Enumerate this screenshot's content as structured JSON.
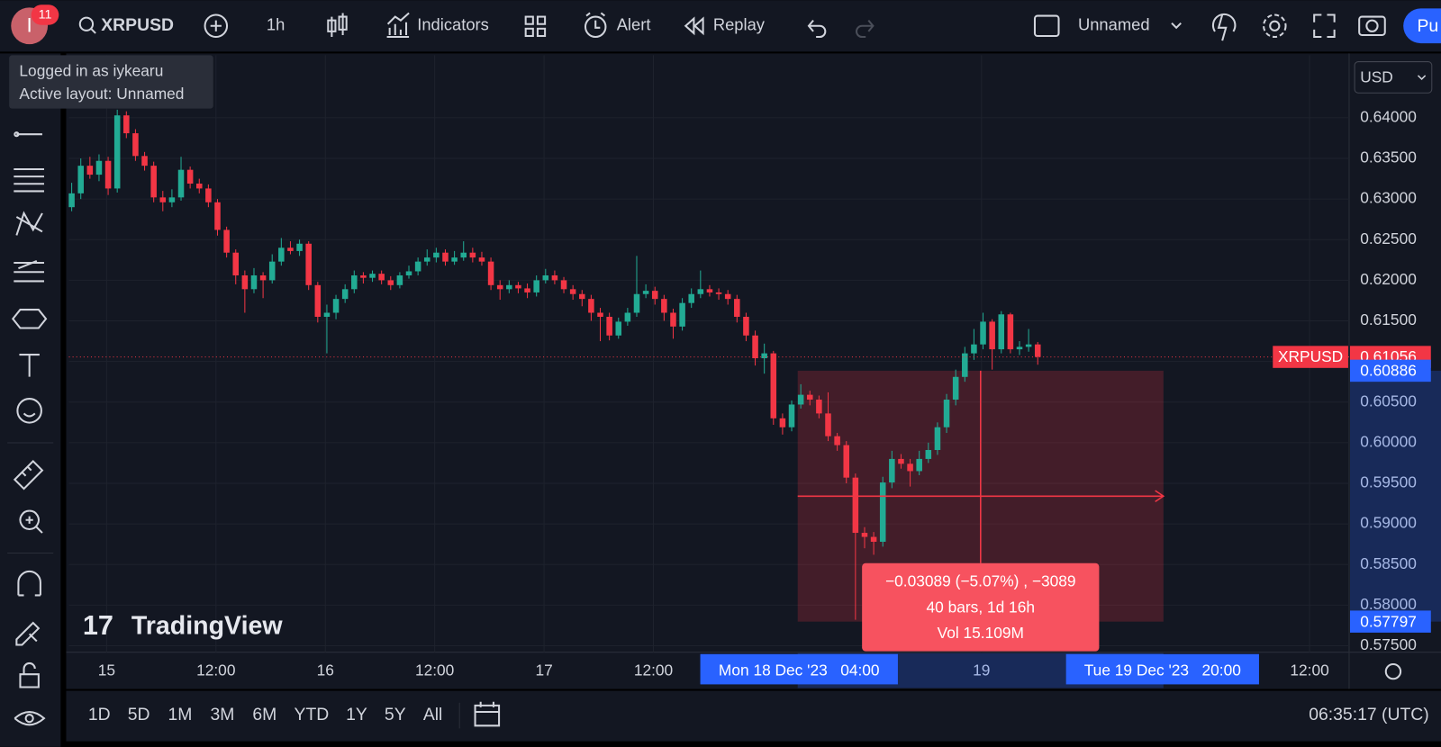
{
  "toolbar": {
    "avatar": "I",
    "badge": "11",
    "symbol": "XRPUSD",
    "interval": "1h",
    "indicators": "Indicators",
    "alert": "Alert",
    "replay": "Replay",
    "layout": "Unnamed",
    "publish": "Pu"
  },
  "user_tooltip": {
    "line1": "Logged in as iykearu",
    "line2": "Active layout: Unnamed"
  },
  "chart_data": {
    "type": "candlestick",
    "symbol_label": "XRPUSD",
    "currency": "USD",
    "watermark": "TradingView",
    "up_color": "#22ab94",
    "down_color": "#f23645",
    "grid": true,
    "ylim": [
      0.5742,
      0.6477
    ],
    "yticks": [
      {
        "value": 0.64,
        "label": "0.64000"
      },
      {
        "value": 0.635,
        "label": "0.63500"
      },
      {
        "value": 0.63,
        "label": "0.63000"
      },
      {
        "value": 0.625,
        "label": "0.62500"
      },
      {
        "value": 0.62,
        "label": "0.62000"
      },
      {
        "value": 0.615,
        "label": "0.61500"
      },
      {
        "value": 0.61,
        "label": "0.61000"
      },
      {
        "value": 0.605,
        "label": "0.60500"
      },
      {
        "value": 0.6,
        "label": "0.60000"
      },
      {
        "value": 0.595,
        "label": "0.59500"
      },
      {
        "value": 0.59,
        "label": "0.59000"
      },
      {
        "value": 0.585,
        "label": "0.58500"
      },
      {
        "value": 0.58,
        "label": "0.58000"
      },
      {
        "value": 0.575,
        "label": "0.57500"
      }
    ],
    "xticks": [
      "15",
      "12:00",
      "16",
      "12:00",
      "17",
      "12:00",
      "19",
      "12:00"
    ],
    "last_price": 0.61056,
    "measure": {
      "high": 0.60886,
      "low": 0.57797,
      "change": "−0.03089 (−5.07%) , −3089",
      "bars": "40 bars, 1d 16h",
      "volume": "Vol 15.109M",
      "start_label": "Mon 18 Dec '23   04:00",
      "end_label": "Tue 19 Dec '23   20:00"
    },
    "candles": [
      [
        0.629,
        0.632,
        0.6285,
        0.6307
      ],
      [
        0.6307,
        0.635,
        0.63,
        0.6341
      ],
      [
        0.6341,
        0.6352,
        0.6325,
        0.633
      ],
      [
        0.633,
        0.6355,
        0.6322,
        0.6347
      ],
      [
        0.6347,
        0.6352,
        0.6305,
        0.6313
      ],
      [
        0.6313,
        0.641,
        0.6308,
        0.6403
      ],
      [
        0.6403,
        0.6408,
        0.6375,
        0.6381
      ],
      [
        0.6381,
        0.6386,
        0.6347,
        0.6353
      ],
      [
        0.6353,
        0.6358,
        0.6335,
        0.6341
      ],
      [
        0.6341,
        0.6346,
        0.6296,
        0.6302
      ],
      [
        0.6302,
        0.631,
        0.6285,
        0.6296
      ],
      [
        0.6296,
        0.6312,
        0.629,
        0.6302
      ],
      [
        0.6302,
        0.6352,
        0.6298,
        0.6336
      ],
      [
        0.6336,
        0.634,
        0.6313,
        0.6319
      ],
      [
        0.6319,
        0.6325,
        0.6307,
        0.6313
      ],
      [
        0.6313,
        0.6318,
        0.629,
        0.6296
      ],
      [
        0.6296,
        0.63,
        0.6255,
        0.6262
      ],
      [
        0.6262,
        0.6266,
        0.6228,
        0.6234
      ],
      [
        0.6234,
        0.6238,
        0.6195,
        0.6206
      ],
      [
        0.6206,
        0.6212,
        0.616,
        0.6189
      ],
      [
        0.6189,
        0.6215,
        0.6184,
        0.6206
      ],
      [
        0.6206,
        0.621,
        0.6178,
        0.62
      ],
      [
        0.62,
        0.6232,
        0.6196,
        0.6223
      ],
      [
        0.6223,
        0.6252,
        0.6218,
        0.624
      ],
      [
        0.624,
        0.6248,
        0.6232,
        0.6236
      ],
      [
        0.6236,
        0.625,
        0.623,
        0.6245
      ],
      [
        0.6245,
        0.6248,
        0.6188,
        0.6194
      ],
      [
        0.6194,
        0.6198,
        0.6148,
        0.6155
      ],
      [
        0.6155,
        0.617,
        0.611,
        0.616
      ],
      [
        0.616,
        0.6182,
        0.6152,
        0.6177
      ],
      [
        0.6177,
        0.6195,
        0.6172,
        0.6189
      ],
      [
        0.6189,
        0.6212,
        0.6184,
        0.6206
      ],
      [
        0.6206,
        0.621,
        0.6196,
        0.6203
      ],
      [
        0.6203,
        0.6212,
        0.6198,
        0.6208
      ],
      [
        0.6208,
        0.6212,
        0.6195,
        0.62
      ],
      [
        0.62,
        0.6205,
        0.6188,
        0.6194
      ],
      [
        0.6194,
        0.621,
        0.619,
        0.6206
      ],
      [
        0.6206,
        0.6218,
        0.6202,
        0.6211
      ],
      [
        0.6211,
        0.6228,
        0.6206,
        0.6223
      ],
      [
        0.6223,
        0.6238,
        0.6218,
        0.6228
      ],
      [
        0.6228,
        0.624,
        0.6222,
        0.6234
      ],
      [
        0.6234,
        0.6238,
        0.6218,
        0.6223
      ],
      [
        0.6223,
        0.6236,
        0.6219,
        0.6228
      ],
      [
        0.6228,
        0.6248,
        0.6224,
        0.6234
      ],
      [
        0.6234,
        0.624,
        0.6222,
        0.6228
      ],
      [
        0.6228,
        0.6235,
        0.6218,
        0.6223
      ],
      [
        0.6223,
        0.6228,
        0.6188,
        0.6194
      ],
      [
        0.6194,
        0.62,
        0.6176,
        0.6189
      ],
      [
        0.6189,
        0.62,
        0.6184,
        0.6194
      ],
      [
        0.6194,
        0.6198,
        0.6184,
        0.619
      ],
      [
        0.619,
        0.6196,
        0.6178,
        0.6185
      ],
      [
        0.6185,
        0.6206,
        0.618,
        0.62
      ],
      [
        0.62,
        0.6214,
        0.6196,
        0.6206
      ],
      [
        0.6206,
        0.6212,
        0.6195,
        0.62
      ],
      [
        0.62,
        0.6204,
        0.6184,
        0.6189
      ],
      [
        0.6189,
        0.6194,
        0.6176,
        0.6183
      ],
      [
        0.6183,
        0.6188,
        0.6168,
        0.6177
      ],
      [
        0.6177,
        0.6182,
        0.615,
        0.616
      ],
      [
        0.616,
        0.6166,
        0.6125,
        0.6155
      ],
      [
        0.6155,
        0.616,
        0.6126,
        0.6132
      ],
      [
        0.6132,
        0.6154,
        0.6128,
        0.6149
      ],
      [
        0.6149,
        0.6166,
        0.6144,
        0.616
      ],
      [
        0.616,
        0.623,
        0.6155,
        0.6183
      ],
      [
        0.6183,
        0.6195,
        0.6178,
        0.6187
      ],
      [
        0.6187,
        0.6192,
        0.617,
        0.6177
      ],
      [
        0.6177,
        0.6182,
        0.615,
        0.616
      ],
      [
        0.616,
        0.6165,
        0.6128,
        0.6143
      ],
      [
        0.6143,
        0.6178,
        0.6138,
        0.6172
      ],
      [
        0.6172,
        0.619,
        0.6166,
        0.6183
      ],
      [
        0.6183,
        0.6212,
        0.6178,
        0.6189
      ],
      [
        0.6189,
        0.6194,
        0.618,
        0.6185
      ],
      [
        0.6185,
        0.619,
        0.6176,
        0.6183
      ],
      [
        0.6183,
        0.6188,
        0.617,
        0.6177
      ],
      [
        0.6177,
        0.6182,
        0.6148,
        0.6155
      ],
      [
        0.6155,
        0.616,
        0.6125,
        0.6132
      ],
      [
        0.6132,
        0.6138,
        0.6095,
        0.6104
      ],
      [
        0.6104,
        0.6122,
        0.6085,
        0.611
      ],
      [
        0.611,
        0.6113,
        0.6022,
        0.603
      ],
      [
        0.603,
        0.6036,
        0.601,
        0.6019
      ],
      [
        0.6019,
        0.6052,
        0.6014,
        0.6047
      ],
      [
        0.6047,
        0.6072,
        0.6042,
        0.6059
      ],
      [
        0.6059,
        0.6064,
        0.6046,
        0.6053
      ],
      [
        0.6053,
        0.6058,
        0.603,
        0.6036
      ],
      [
        0.6036,
        0.6062,
        0.6002,
        0.6008
      ],
      [
        0.6008,
        0.6012,
        0.599,
        0.5997
      ],
      [
        0.5997,
        0.6002,
        0.595,
        0.5957
      ],
      [
        0.5957,
        0.5962,
        0.5782,
        0.5889
      ],
      [
        0.5889,
        0.5896,
        0.587,
        0.5884
      ],
      [
        0.5884,
        0.589,
        0.5862,
        0.5878
      ],
      [
        0.5878,
        0.5958,
        0.5872,
        0.5951
      ],
      [
        0.5951,
        0.599,
        0.5944,
        0.598
      ],
      [
        0.598,
        0.5986,
        0.5968,
        0.5974
      ],
      [
        0.5974,
        0.598,
        0.5946,
        0.5965
      ],
      [
        0.5965,
        0.599,
        0.596,
        0.598
      ],
      [
        0.598,
        0.6,
        0.5975,
        0.5991
      ],
      [
        0.5991,
        0.6025,
        0.5985,
        0.6019
      ],
      [
        0.6019,
        0.606,
        0.6012,
        0.6053
      ],
      [
        0.6053,
        0.609,
        0.6046,
        0.6081
      ],
      [
        0.6081,
        0.6118,
        0.6075,
        0.611
      ],
      [
        0.611,
        0.614,
        0.6102,
        0.6121
      ],
      [
        0.6121,
        0.616,
        0.6115,
        0.6149
      ],
      [
        0.6149,
        0.6152,
        0.609,
        0.6115
      ],
      [
        0.6115,
        0.6162,
        0.611,
        0.6158
      ],
      [
        0.6158,
        0.616,
        0.611,
        0.6115
      ],
      [
        0.6115,
        0.6125,
        0.6108,
        0.6118
      ],
      [
        0.6118,
        0.614,
        0.6112,
        0.6121
      ],
      [
        0.6121,
        0.6124,
        0.6096,
        0.61056
      ]
    ]
  },
  "bottom": {
    "ranges": [
      "1D",
      "5D",
      "1M",
      "3M",
      "6M",
      "YTD",
      "1Y",
      "5Y",
      "All"
    ],
    "clock": "06:35:17 (UTC)"
  }
}
